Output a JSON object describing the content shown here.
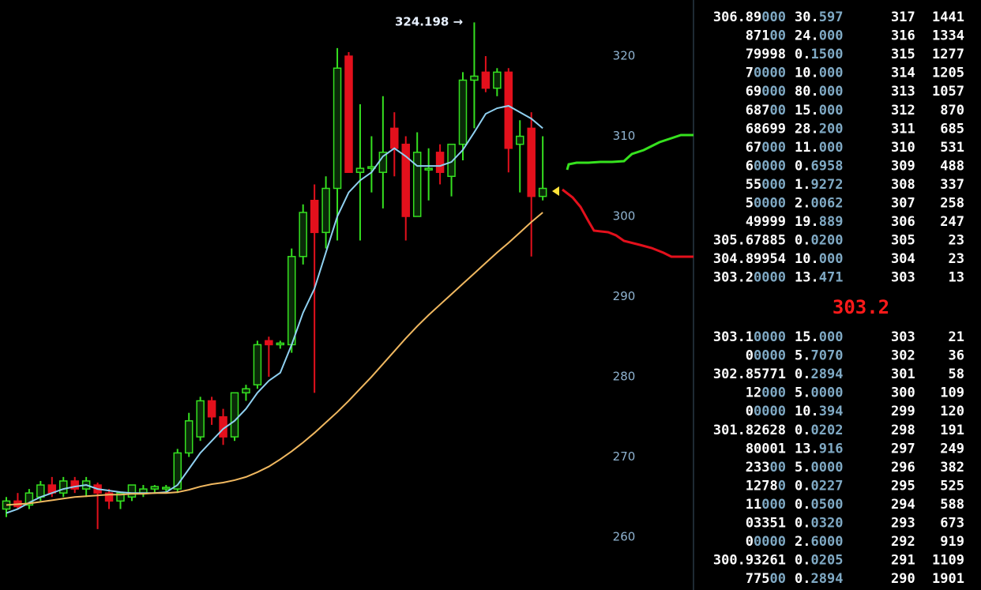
{
  "chart_data": {
    "type": "candlestick",
    "annotation": "324.198 →",
    "ylim": [
      253.4,
      327.0
    ],
    "yticks": [
      260,
      270,
      280,
      290,
      300,
      310,
      320
    ],
    "up_color": "#35e020",
    "down_color": "#e3101c",
    "ohlc": [
      [
        263.5,
        265,
        262.5,
        264.5
      ],
      [
        264.5,
        265.5,
        263.5,
        263.8
      ],
      [
        264,
        266,
        263.5,
        265.5
      ],
      [
        265,
        267,
        264.5,
        266.5
      ],
      [
        266.5,
        267.5,
        265,
        265.5
      ],
      [
        265.5,
        267.5,
        265,
        267
      ],
      [
        267,
        267.5,
        265.5,
        266
      ],
      [
        266,
        267.5,
        265,
        267
      ],
      [
        266.5,
        266.8,
        261,
        265.5
      ],
      [
        265.5,
        266,
        263.5,
        264.5
      ],
      [
        264.5,
        265.5,
        263.5,
        265.5
      ],
      [
        265,
        266.5,
        264.5,
        266.5
      ],
      [
        265.5,
        266.5,
        265,
        266
      ],
      [
        266,
        266.5,
        265.5,
        266.3
      ],
      [
        266,
        266.5,
        265.5,
        266.2
      ],
      [
        266,
        271,
        265.5,
        270.5
      ],
      [
        270.5,
        275.5,
        270,
        274.5
      ],
      [
        272.5,
        277.5,
        272,
        277
      ],
      [
        277,
        277.5,
        274,
        275
      ],
      [
        275,
        276,
        271.5,
        272.5
      ],
      [
        272.5,
        278,
        272,
        278
      ],
      [
        278,
        279,
        277,
        278.5
      ],
      [
        279,
        284.5,
        278.5,
        284
      ],
      [
        284.5,
        285,
        280,
        284
      ],
      [
        284,
        284.5,
        283.5,
        284.2
      ],
      [
        284,
        296,
        283,
        295
      ],
      [
        295,
        301.5,
        294,
        300.5
      ],
      [
        302,
        304,
        278,
        298
      ],
      [
        298,
        305,
        296,
        303.5
      ],
      [
        303.5,
        321,
        297,
        318.5
      ],
      [
        320,
        320.5,
        306,
        305.5
      ],
      [
        305.5,
        314,
        297,
        306
      ],
      [
        306,
        310,
        303,
        306.2
      ],
      [
        305.5,
        315,
        301,
        308
      ],
      [
        311,
        313,
        305,
        308.5
      ],
      [
        309,
        310,
        297,
        300
      ],
      [
        300,
        310.5,
        300,
        308
      ],
      [
        306,
        308.5,
        302,
        306
      ],
      [
        308,
        309,
        304,
        305.5
      ],
      [
        305,
        309,
        302.5,
        309
      ],
      [
        309,
        318,
        307,
        317
      ],
      [
        317,
        324.2,
        311,
        317.5
      ],
      [
        318,
        320,
        315.5,
        316
      ],
      [
        316,
        318.5,
        315,
        318
      ],
      [
        318,
        318.5,
        305.5,
        308.5
      ],
      [
        309,
        312,
        303,
        310
      ],
      [
        311,
        313,
        295,
        302.5
      ],
      [
        302.5,
        310,
        302,
        303.5
      ]
    ],
    "series": [
      {
        "color": "#8fd0f0",
        "values": [
          263,
          263.5,
          264.3,
          265,
          265.5,
          266,
          266.3,
          266.5,
          266,
          265.8,
          265.6,
          265.5,
          265.5,
          265.5,
          265.6,
          266.5,
          268.5,
          270.5,
          272,
          273.5,
          274.5,
          276,
          278,
          279.5,
          280.5,
          284,
          288,
          291,
          295.5,
          300,
          303,
          304.5,
          305.5,
          307.5,
          308.5,
          307.5,
          306.3,
          306.3,
          306.3,
          306.8,
          308.3,
          310.5,
          312.8,
          313.5,
          313.8,
          313,
          312.2,
          311
        ]
      },
      {
        "color": "#f0b860",
        "values": [
          264,
          264.1,
          264.2,
          264.4,
          264.6,
          264.8,
          265,
          265.1,
          265.2,
          265.3,
          265.3,
          265.4,
          265.4,
          265.5,
          265.5,
          265.6,
          265.9,
          266.3,
          266.6,
          266.8,
          267.1,
          267.5,
          268.1,
          268.8,
          269.7,
          270.7,
          271.8,
          273,
          274.3,
          275.6,
          277,
          278.5,
          280,
          281.6,
          283.2,
          284.8,
          286.3,
          287.7,
          289,
          290.3,
          291.6,
          292.9,
          294.2,
          295.5,
          296.7,
          298,
          299.3,
          300.5
        ]
      }
    ]
  },
  "order_book": {
    "asks": [
      {
        "price": [
          "306.89",
          "000"
        ],
        "amount": [
          "30.",
          "597"
        ],
        "level": 317,
        "total": 1441
      },
      {
        "price": [
          "871",
          "00"
        ],
        "amount": [
          "24.",
          "000"
        ],
        "level": 316,
        "total": 1334
      },
      {
        "price": [
          "79998"
        ],
        "amount": [
          "0.",
          "1500"
        ],
        "level": 315,
        "total": 1277
      },
      {
        "price": [
          "7",
          "0000"
        ],
        "amount": [
          "10.",
          "000"
        ],
        "level": 314,
        "total": 1205
      },
      {
        "price": [
          "69",
          "000"
        ],
        "amount": [
          "80.",
          "000"
        ],
        "level": 313,
        "total": 1057
      },
      {
        "price": [
          "687",
          "00"
        ],
        "amount": [
          "15.",
          "000"
        ],
        "level": 312,
        "total": 870
      },
      {
        "price": [
          "68699"
        ],
        "amount": [
          "28.",
          "200"
        ],
        "level": 311,
        "total": 685
      },
      {
        "price": [
          "67",
          "000"
        ],
        "amount": [
          "11.",
          "000"
        ],
        "level": 310,
        "total": 531
      },
      {
        "price": [
          "6",
          "0000"
        ],
        "amount": [
          "0.",
          "6958"
        ],
        "level": 309,
        "total": 488
      },
      {
        "price": [
          "55",
          "000"
        ],
        "amount": [
          "1.",
          "9272"
        ],
        "level": 308,
        "total": 337
      },
      {
        "price": [
          "5",
          "0000"
        ],
        "amount": [
          "2.",
          "0062"
        ],
        "level": 307,
        "total": 258
      },
      {
        "price": [
          "49999"
        ],
        "amount": [
          "19.",
          "889"
        ],
        "level": 306,
        "total": 247
      },
      {
        "price": [
          "305.67885"
        ],
        "amount": [
          "0.",
          "0200"
        ],
        "level": 305,
        "total": 23
      },
      {
        "price": [
          "304.89954"
        ],
        "amount": [
          "10.",
          "000"
        ],
        "level": 304,
        "total": 23
      },
      {
        "price": [
          "303.2",
          "0000"
        ],
        "amount": [
          "13.",
          "471"
        ],
        "level": 303,
        "total": 13
      }
    ],
    "last": "303.2",
    "bids": [
      {
        "price": [
          "303.1",
          "0000"
        ],
        "amount": [
          "15.",
          "000"
        ],
        "level": 303,
        "total": 21
      },
      {
        "price": [
          "0",
          "0000"
        ],
        "amount": [
          "5.",
          "7070"
        ],
        "level": 302,
        "total": 36
      },
      {
        "price": [
          "302.85771"
        ],
        "amount": [
          "0.",
          "2894"
        ],
        "level": 301,
        "total": 58
      },
      {
        "price": [
          "12",
          "000"
        ],
        "amount": [
          "5.",
          "0000"
        ],
        "level": 300,
        "total": 109
      },
      {
        "price": [
          "0",
          "0000"
        ],
        "amount": [
          "10.",
          "394"
        ],
        "level": 299,
        "total": 120
      },
      {
        "price": [
          "301.82628"
        ],
        "amount": [
          "0.",
          "0202"
        ],
        "level": 298,
        "total": 191
      },
      {
        "price": [
          "80001"
        ],
        "amount": [
          "13.",
          "916"
        ],
        "level": 297,
        "total": 249
      },
      {
        "price": [
          "233",
          "00"
        ],
        "amount": [
          "5.",
          "0000"
        ],
        "level": 296,
        "total": 382
      },
      {
        "price": [
          "1278",
          "0"
        ],
        "amount": [
          "0.",
          "0227"
        ],
        "level": 295,
        "total": 525
      },
      {
        "price": [
          "11",
          "000"
        ],
        "amount": [
          "0.",
          "0500"
        ],
        "level": 294,
        "total": 588
      },
      {
        "price": [
          "03351"
        ],
        "amount": [
          "0.",
          "0320"
        ],
        "level": 293,
        "total": 673
      },
      {
        "price": [
          "0",
          "0000"
        ],
        "amount": [
          "2.",
          "6000"
        ],
        "level": 292,
        "total": 919
      },
      {
        "price": [
          "300.93261"
        ],
        "amount": [
          "0.",
          "0205"
        ],
        "level": 291,
        "total": 1109
      },
      {
        "price": [
          "775",
          "00"
        ],
        "amount": [
          "0.",
          "2894"
        ],
        "level": 290,
        "total": 1901
      }
    ]
  }
}
